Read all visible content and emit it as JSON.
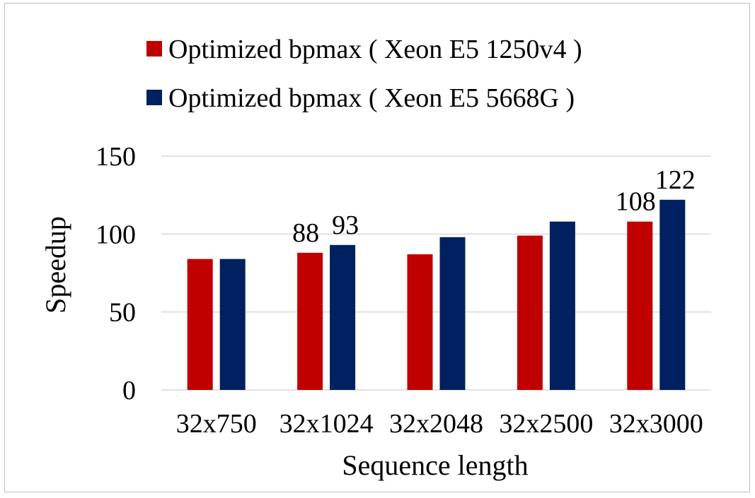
{
  "chart_data": {
    "type": "bar",
    "title": "",
    "xlabel": "Sequence length",
    "ylabel": "Speedup",
    "ylim": [
      0,
      150
    ],
    "yticks": [
      0,
      50,
      100,
      150
    ],
    "grid": true,
    "legend_position": "top",
    "categories": [
      "32x750",
      "32x1024",
      "32x2048",
      "32x2500",
      "32x3000"
    ],
    "series": [
      {
        "name": "Optimized bpmax ( Xeon E5 1250v4 )",
        "color": "#c00000",
        "values": [
          84,
          88,
          87,
          99,
          108
        ],
        "labels": [
          "",
          "88",
          "",
          "",
          "108"
        ]
      },
      {
        "name": "Optimized bpmax ( Xeon E5 5668G )",
        "color": "#002060",
        "values": [
          84,
          93,
          98,
          108,
          122
        ],
        "labels": [
          "",
          "93",
          "",
          "",
          "122"
        ]
      }
    ]
  }
}
